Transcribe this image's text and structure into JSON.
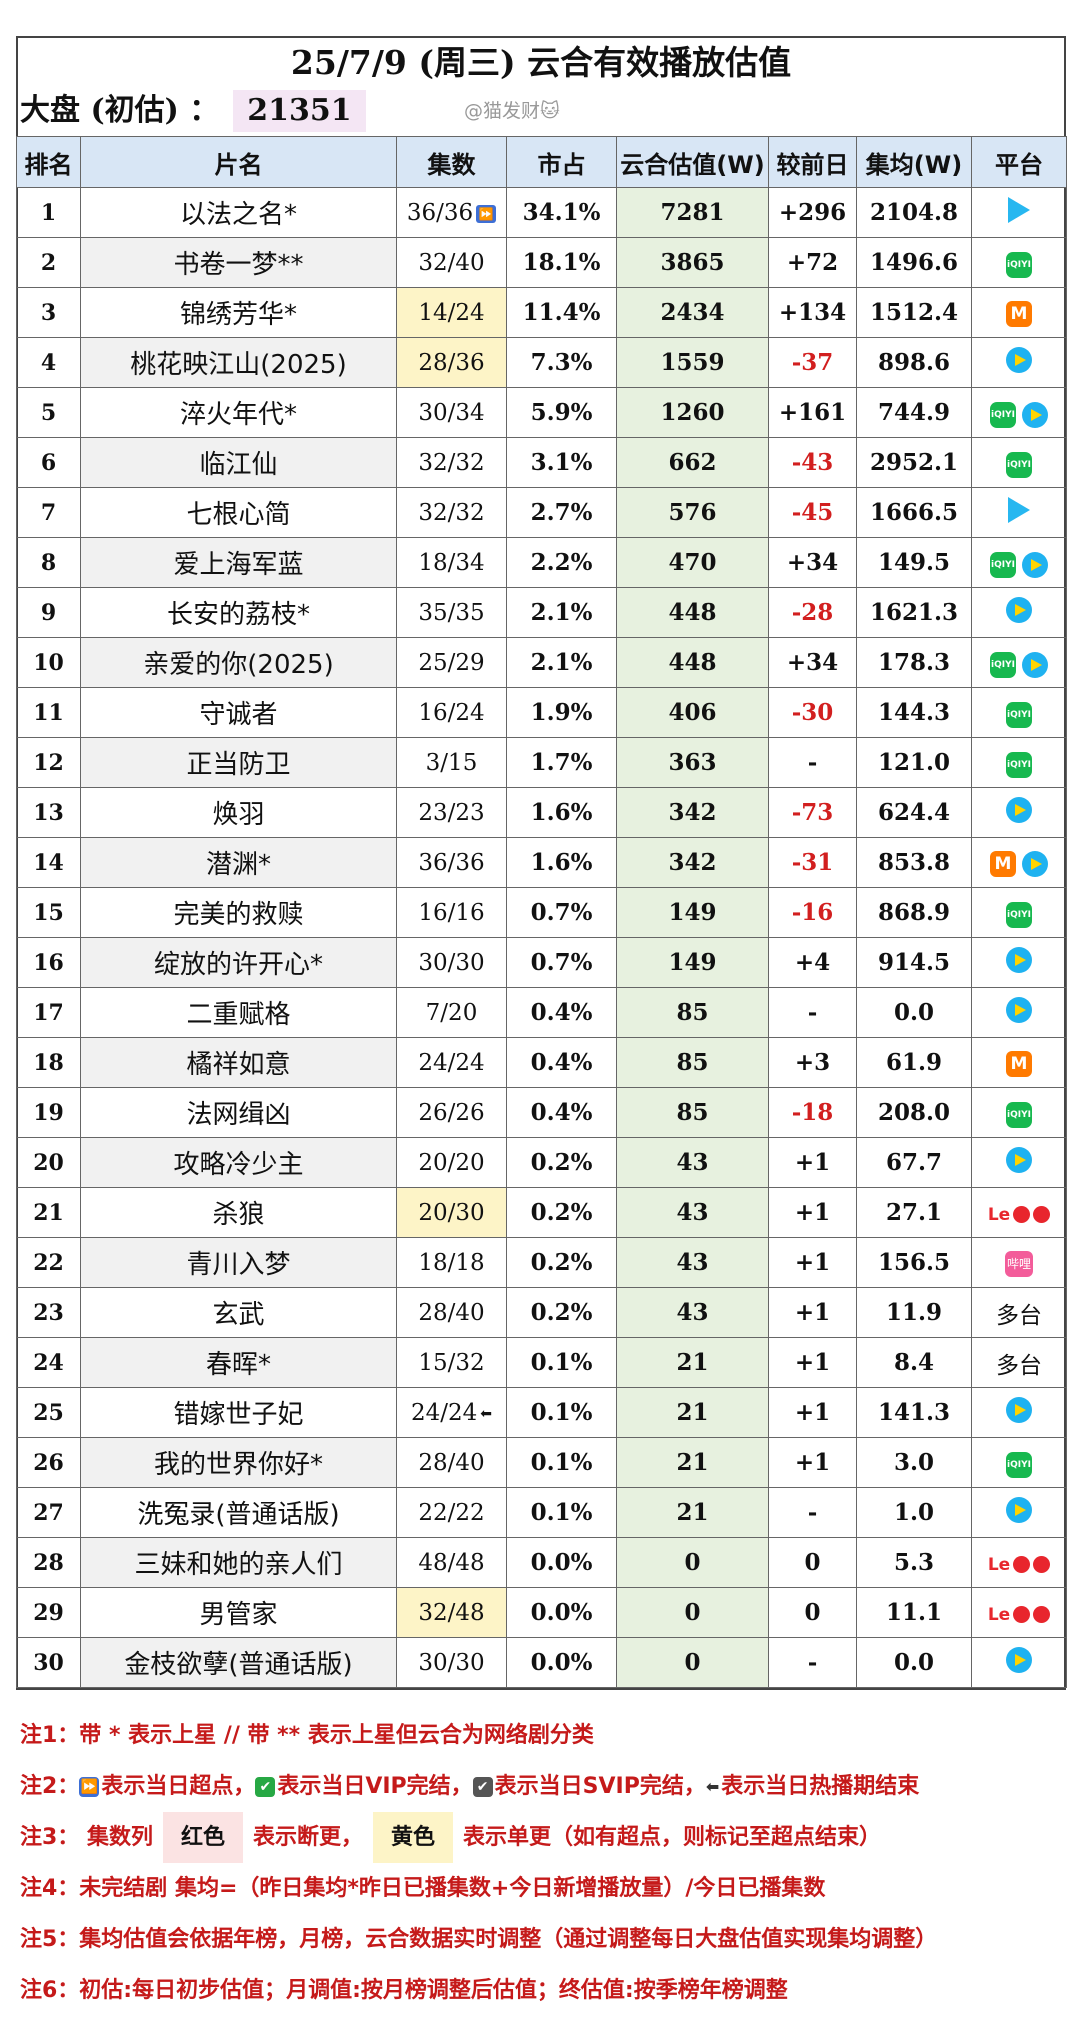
{
  "title": "25/7/9 (周三) 云合有效播放估值",
  "dapan": {
    "label": "大盘 (初估) ：",
    "value": "21351"
  },
  "watermark": "@猫发财🐱",
  "headers": [
    "排名",
    "片名",
    "集数",
    "市占",
    "云合估值(W)",
    "较前日",
    "集均(W)",
    "平台"
  ],
  "rows": [
    {
      "rank": "1",
      "name": "以法之名*",
      "ep": "36/36",
      "ep_mark": "superpoint",
      "share": "34.1%",
      "est": "7281",
      "cmp": "+296",
      "avg": "2104.8",
      "platforms": [
        "tencent"
      ]
    },
    {
      "rank": "2",
      "name": "书卷一梦**",
      "ep": "32/40",
      "share": "18.1%",
      "est": "3865",
      "cmp": "+72",
      "avg": "1496.6",
      "platforms": [
        "iqiyi"
      ]
    },
    {
      "rank": "3",
      "name": "锦绣芳华*",
      "ep": "14/24",
      "ep_hl": "yellow",
      "share": "11.4%",
      "est": "2434",
      "cmp": "+134",
      "avg": "1512.4",
      "platforms": [
        "mango"
      ]
    },
    {
      "rank": "4",
      "name": "桃花映江山(2025)",
      "ep": "28/36",
      "ep_hl": "yellow",
      "share": "7.3%",
      "est": "1559",
      "cmp": "-37",
      "avg": "898.6",
      "platforms": [
        "youku"
      ]
    },
    {
      "rank": "5",
      "name": "淬火年代*",
      "ep": "30/34",
      "share": "5.9%",
      "est": "1260",
      "cmp": "+161",
      "avg": "744.9",
      "platforms": [
        "iqiyi",
        "youku"
      ]
    },
    {
      "rank": "6",
      "name": "临江仙",
      "ep": "32/32",
      "share": "3.1%",
      "est": "662",
      "cmp": "-43",
      "avg": "2952.1",
      "platforms": [
        "iqiyi"
      ]
    },
    {
      "rank": "7",
      "name": "七根心简",
      "ep": "32/32",
      "share": "2.7%",
      "est": "576",
      "cmp": "-45",
      "avg": "1666.5",
      "platforms": [
        "tencent"
      ]
    },
    {
      "rank": "8",
      "name": "爱上海军蓝",
      "ep": "18/34",
      "share": "2.2%",
      "est": "470",
      "cmp": "+34",
      "avg": "149.5",
      "platforms": [
        "iqiyi",
        "youku"
      ]
    },
    {
      "rank": "9",
      "name": "长安的荔枝*",
      "ep": "35/35",
      "share": "2.1%",
      "est": "448",
      "cmp": "-28",
      "avg": "1621.3",
      "platforms": [
        "youku"
      ]
    },
    {
      "rank": "10",
      "name": "亲爱的你(2025)",
      "ep": "25/29",
      "share": "2.1%",
      "est": "448",
      "cmp": "+34",
      "avg": "178.3",
      "platforms": [
        "iqiyi",
        "youku"
      ]
    },
    {
      "rank": "11",
      "name": "守诚者",
      "ep": "16/24",
      "share": "1.9%",
      "est": "406",
      "cmp": "-30",
      "avg": "144.3",
      "platforms": [
        "iqiyi"
      ]
    },
    {
      "rank": "12",
      "name": "正当防卫",
      "ep": "3/15",
      "share": "1.7%",
      "est": "363",
      "cmp": "-",
      "avg": "121.0",
      "platforms": [
        "iqiyi"
      ]
    },
    {
      "rank": "13",
      "name": "焕羽",
      "ep": "23/23",
      "share": "1.6%",
      "est": "342",
      "cmp": "-73",
      "avg": "624.4",
      "platforms": [
        "youku"
      ]
    },
    {
      "rank": "14",
      "name": "潜渊*",
      "ep": "36/36",
      "share": "1.6%",
      "est": "342",
      "cmp": "-31",
      "avg": "853.8",
      "platforms": [
        "mango",
        "youku"
      ]
    },
    {
      "rank": "15",
      "name": "完美的救赎",
      "ep": "16/16",
      "share": "0.7%",
      "est": "149",
      "cmp": "-16",
      "avg": "868.9",
      "platforms": [
        "iqiyi"
      ]
    },
    {
      "rank": "16",
      "name": "绽放的许开心*",
      "ep": "30/30",
      "share": "0.7%",
      "est": "149",
      "cmp": "+4",
      "avg": "914.5",
      "platforms": [
        "youku"
      ]
    },
    {
      "rank": "17",
      "name": "二重赋格",
      "ep": "7/20",
      "share": "0.4%",
      "est": "85",
      "cmp": "-",
      "avg": "0.0",
      "platforms": [
        "youku"
      ]
    },
    {
      "rank": "18",
      "name": "橘祥如意",
      "ep": "24/24",
      "share": "0.4%",
      "est": "85",
      "cmp": "+3",
      "avg": "61.9",
      "platforms": [
        "mango"
      ]
    },
    {
      "rank": "19",
      "name": "法网缉凶",
      "ep": "26/26",
      "share": "0.4%",
      "est": "85",
      "cmp": "-18",
      "avg": "208.0",
      "platforms": [
        "iqiyi"
      ]
    },
    {
      "rank": "20",
      "name": "攻略冷少主",
      "ep": "20/20",
      "share": "0.2%",
      "est": "43",
      "cmp": "+1",
      "avg": "67.7",
      "platforms": [
        "youku"
      ]
    },
    {
      "rank": "21",
      "name": "杀狼",
      "ep": "20/30",
      "ep_hl": "yellow",
      "share": "0.2%",
      "est": "43",
      "cmp": "+1",
      "avg": "27.1",
      "platforms": [
        "le"
      ]
    },
    {
      "rank": "22",
      "name": "青川入梦",
      "ep": "18/18",
      "share": "0.2%",
      "est": "43",
      "cmp": "+1",
      "avg": "156.5",
      "platforms": [
        "pink"
      ]
    },
    {
      "rank": "23",
      "name": "玄武",
      "ep": "28/40",
      "share": "0.2%",
      "est": "43",
      "cmp": "+1",
      "avg": "11.9",
      "platforms": [
        "multi"
      ]
    },
    {
      "rank": "24",
      "name": "春晖*",
      "ep": "15/32",
      "share": "0.1%",
      "est": "21",
      "cmp": "+1",
      "avg": "8.4",
      "platforms": [
        "multi"
      ]
    },
    {
      "rank": "25",
      "name": "错嫁世子妃",
      "ep": "24/24",
      "ep_mark": "end",
      "share": "0.1%",
      "est": "21",
      "cmp": "+1",
      "avg": "141.3",
      "platforms": [
        "youku"
      ]
    },
    {
      "rank": "26",
      "name": "我的世界你好*",
      "ep": "28/40",
      "share": "0.1%",
      "est": "21",
      "cmp": "+1",
      "avg": "3.0",
      "platforms": [
        "iqiyi"
      ]
    },
    {
      "rank": "27",
      "name": "洗冤录(普通话版)",
      "ep": "22/22",
      "share": "0.1%",
      "est": "21",
      "cmp": "-",
      "avg": "1.0",
      "platforms": [
        "youku"
      ]
    },
    {
      "rank": "28",
      "name": "三妹和她的亲人们",
      "ep": "48/48",
      "share": "0.0%",
      "est": "0",
      "cmp": "0",
      "avg": "5.3",
      "platforms": [
        "le"
      ]
    },
    {
      "rank": "29",
      "name": "男管家",
      "ep": "32/48",
      "ep_hl": "yellow",
      "share": "0.0%",
      "est": "0",
      "cmp": "0",
      "avg": "11.1",
      "platforms": [
        "le"
      ]
    },
    {
      "rank": "30",
      "name": "金枝欲孽(普通话版)",
      "ep": "30/30",
      "share": "0.0%",
      "est": "0",
      "cmp": "-",
      "avg": "0.0",
      "platforms": [
        "youku"
      ]
    }
  ],
  "platform_labels": {
    "iqiyi": "iQIYI",
    "mango": "M",
    "le": "Le",
    "pink": "哔哩",
    "multi": "多台"
  },
  "notes": {
    "n1": "注1：带 * 表示上星 // 带 ** 表示上星但云合为网络剧分类",
    "n2_label": "注2：",
    "n2_a": "表示当日超点，",
    "n2_b": "表示当日VIP完结，",
    "n2_c": "表示当日SVIP完结，",
    "n2_d": "表示当日热播期结束",
    "n3_label": "注3：  集数列",
    "n3_red": "红色",
    "n3_mid": "表示断更，",
    "n3_yel": "黄色",
    "n3_end": "表示单更（如有超点，则标记至超点结束）",
    "n4": "注4：未完结剧 集均=（昨日集均*昨日已播集数+今日新增播放量）/今日已播集数",
    "n5": "注5：集均估值会依据年榜，月榜，云合数据实时调整（通过调整每日大盘估值实现集均调整）",
    "n6": "注6：初估:每日初步估值；月调值:按月榜调整后估值；终估值:按季榜年榜调整"
  },
  "colors": {
    "header_bg": "#d8e6f5",
    "estimate_bg": "#e7f1df",
    "negative": "#d21f1f",
    "note_red": "#c51a1a"
  }
}
